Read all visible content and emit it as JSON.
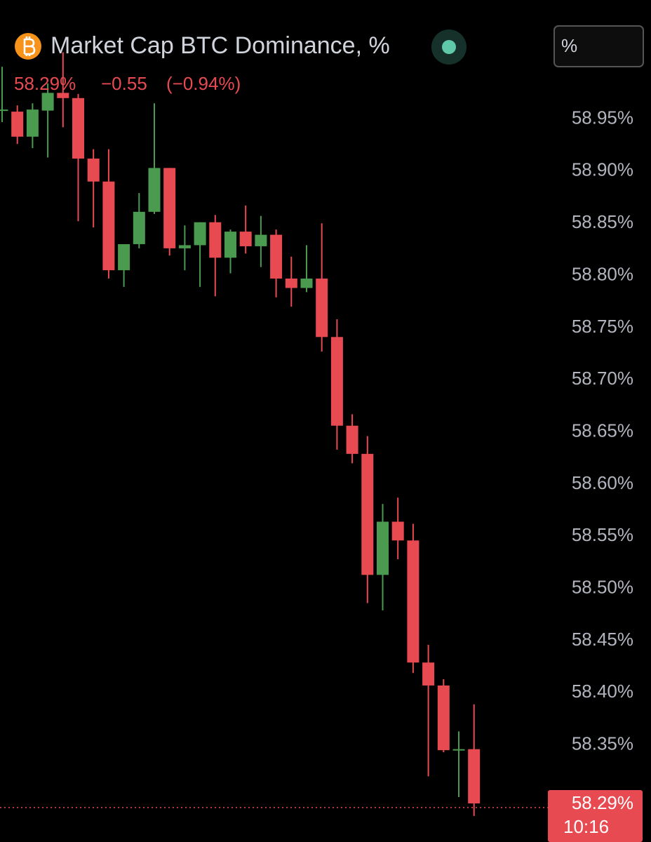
{
  "chart_data": {
    "type": "candlestick",
    "title": "Market Cap BTC Dominance, %",
    "unit_button": "%",
    "last": {
      "value": 58.29,
      "label": "58.29%"
    },
    "change": {
      "value": -0.55,
      "label": "−0.55"
    },
    "change_pct": {
      "value": -0.94,
      "label": "(−0.94%)"
    },
    "countdown": "10:16",
    "up_color": "#4a9a4f",
    "down_color": "#e84a52",
    "open": [
      58.959,
      58.957,
      58.933,
      58.958,
      58.975,
      58.97,
      58.912,
      58.89,
      58.805,
      58.83,
      58.861,
      58.903,
      58.826,
      58.829,
      58.851,
      58.817,
      58.842,
      58.828,
      58.839,
      58.797,
      58.788,
      58.797,
      58.741,
      58.656,
      58.629,
      58.513,
      58.564,
      58.546,
      58.429,
      58.407,
      58.345,
      58.346
    ],
    "high": [
      59.0,
      58.963,
      58.965,
      58.984,
      59.014,
      58.974,
      58.921,
      58.921,
      58.83,
      58.879,
      58.965,
      58.903,
      58.848,
      58.851,
      58.858,
      58.844,
      58.867,
      58.857,
      58.844,
      58.818,
      58.829,
      58.85,
      58.758,
      58.667,
      58.646,
      58.581,
      58.587,
      58.562,
      58.446,
      58.413,
      58.363,
      58.389
    ],
    "low": [
      58.947,
      58.926,
      58.922,
      58.913,
      58.942,
      58.852,
      58.846,
      58.797,
      58.789,
      58.826,
      58.859,
      58.819,
      58.805,
      58.789,
      58.78,
      58.802,
      58.821,
      58.808,
      58.779,
      58.77,
      58.784,
      58.727,
      58.633,
      58.62,
      58.486,
      58.479,
      58.528,
      58.419,
      58.32,
      58.343,
      58.3,
      58.282
    ],
    "close": [
      58.959,
      58.933,
      58.959,
      58.975,
      58.97,
      58.912,
      58.89,
      58.805,
      58.83,
      58.861,
      58.903,
      58.826,
      58.829,
      58.851,
      58.817,
      58.842,
      58.828,
      58.839,
      58.797,
      58.788,
      58.797,
      58.741,
      58.656,
      58.629,
      58.513,
      58.564,
      58.546,
      58.429,
      58.407,
      58.345,
      58.346,
      58.294
    ],
    "ylim": [
      58.257,
      59.064
    ],
    "yticks": [
      {
        "value": 58.95,
        "label": "58.95%"
      },
      {
        "value": 58.9,
        "label": "58.90%"
      },
      {
        "value": 58.85,
        "label": "58.85%"
      },
      {
        "value": 58.8,
        "label": "58.80%"
      },
      {
        "value": 58.75,
        "label": "58.75%"
      },
      {
        "value": 58.7,
        "label": "58.70%"
      },
      {
        "value": 58.65,
        "label": "58.65%"
      },
      {
        "value": 58.6,
        "label": "58.60%"
      },
      {
        "value": 58.55,
        "label": "58.55%"
      },
      {
        "value": 58.5,
        "label": "58.50%"
      },
      {
        "value": 58.45,
        "label": "58.45%"
      },
      {
        "value": 58.4,
        "label": "58.40%"
      },
      {
        "value": 58.35,
        "label": "58.35%"
      }
    ]
  }
}
